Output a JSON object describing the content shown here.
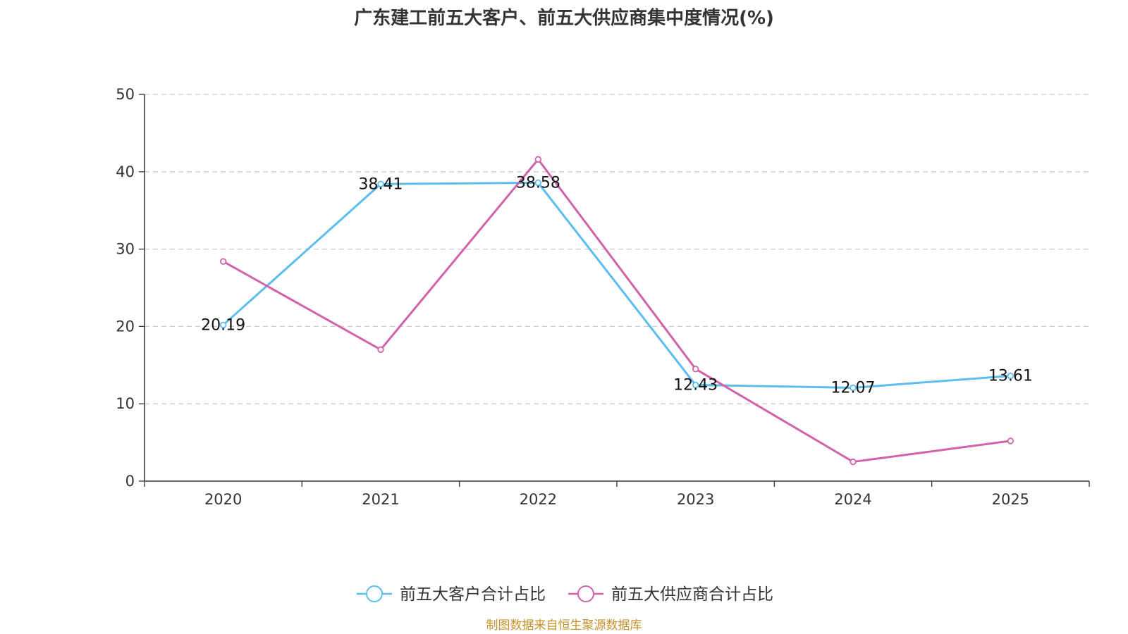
{
  "chart_data": {
    "type": "line",
    "title": "广东建工前五大客户、前五大供应商集中度情况(%)",
    "categories": [
      "2020",
      "2021",
      "2022",
      "2023",
      "2024",
      "2025"
    ],
    "ylim": [
      0,
      50
    ],
    "yticks": [
      0,
      10,
      20,
      30,
      40,
      50
    ],
    "grid": true,
    "legend_position": "bottom-center",
    "series": [
      {
        "name": "前五大客户合计占比",
        "color": "#5bbdee",
        "values": [
          20.19,
          38.41,
          38.58,
          12.43,
          12.07,
          13.61
        ],
        "labels": [
          "20.19",
          "38.41",
          "38.58",
          "12.43",
          "12.07",
          "13.61"
        ]
      },
      {
        "name": "前五大供应商合计占比",
        "color": "#d161a8",
        "values": [
          28.4,
          17.0,
          41.6,
          14.5,
          2.5,
          5.2
        ],
        "labels": []
      }
    ],
    "source": "制图数据来自恒生聚源数据库"
  }
}
